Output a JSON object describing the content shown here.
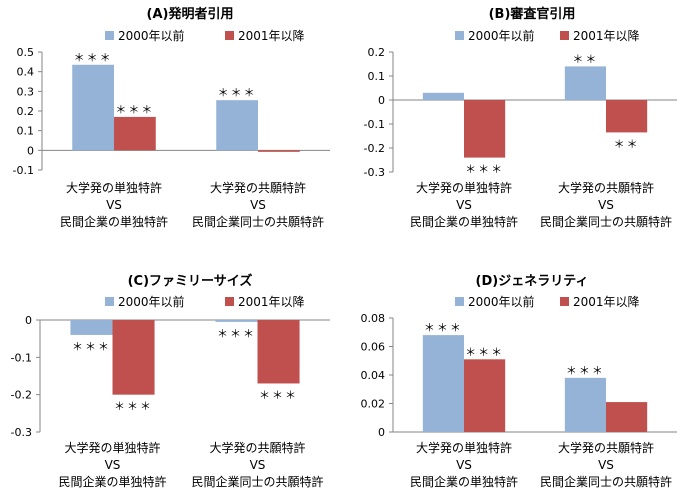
{
  "colors": {
    "s2000": "#95B3D7",
    "s2001": "#C0504D",
    "axis": "#868686",
    "tick": "#000000"
  },
  "legend": [
    "2000年以前",
    "2001年以降"
  ],
  "separator": "VS",
  "chart_data": [
    {
      "type": "bar",
      "title": "(A)発明者引用",
      "ylim": [
        -0.1,
        0.5
      ],
      "yticks": [
        "0.5",
        "0.4",
        "0.3",
        "0.2",
        "0.1",
        "0",
        "-0.1"
      ],
      "categories": [
        {
          "line1": "大学発の単独特許",
          "line3": "民間企業の単独特許"
        },
        {
          "line1": "大学発の共願特許",
          "line3": "民間企業同士の共願特許"
        }
      ],
      "series": [
        {
          "name": "2000年以前",
          "values": [
            0.435,
            0.255
          ],
          "sig": [
            "＊＊＊",
            "＊＊＊"
          ]
        },
        {
          "name": "2001年以降",
          "values": [
            0.17,
            -0.005
          ],
          "sig": [
            "＊＊＊",
            ""
          ]
        }
      ]
    },
    {
      "type": "bar",
      "title": "(B)審査官引用",
      "ylim": [
        -0.3,
        0.2
      ],
      "yticks": [
        "0.2",
        "0.1",
        "0",
        "-0.1",
        "-0.2",
        "-0.3"
      ],
      "categories": [
        {
          "line1": "大学発の単独特許",
          "line3": "民間企業の単独特許"
        },
        {
          "line1": "大学発の共願特許",
          "line3": "民間企業同士の共願特許"
        }
      ],
      "series": [
        {
          "name": "2000年以前",
          "values": [
            0.03,
            0.14
          ],
          "sig": [
            "",
            "＊＊"
          ]
        },
        {
          "name": "2001年以降",
          "values": [
            -0.24,
            -0.135
          ],
          "sig": [
            "＊＊＊",
            "＊＊"
          ]
        }
      ]
    },
    {
      "type": "bar",
      "title": "(C)ファミリーサイズ",
      "ylim": [
        -0.3,
        0
      ],
      "yticks": [
        "0",
        "-0.1",
        "-0.2",
        "-0.3"
      ],
      "categories": [
        {
          "line1": "大学発の単独特許",
          "line3": "民間企業の単独特許"
        },
        {
          "line1": "大学発の共願特許",
          "line3": "民間企業同士の共願特許"
        }
      ],
      "series": [
        {
          "name": "2000年以前",
          "values": [
            -0.04,
            -0.005
          ],
          "sig": [
            "＊＊＊",
            "＊＊＊"
          ]
        },
        {
          "name": "2001年以降",
          "values": [
            -0.2,
            -0.17
          ],
          "sig": [
            "＊＊＊",
            "＊＊＊"
          ]
        }
      ]
    },
    {
      "type": "bar",
      "title": "(D)ジェネラリティ",
      "ylim": [
        0,
        0.08
      ],
      "yticks": [
        "0.08",
        "0.06",
        "0.04",
        "0.02",
        "0"
      ],
      "categories": [
        {
          "line1": "大学発の単独特許",
          "line3": "民間企業の単独特許"
        },
        {
          "line1": "大学発の共願特許",
          "line3": "民間企業同士の共願特許"
        }
      ],
      "series": [
        {
          "name": "2000年以前",
          "values": [
            0.068,
            0.038
          ],
          "sig": [
            "＊＊＊",
            "＊＊＊"
          ]
        },
        {
          "name": "2001年以降",
          "values": [
            0.051,
            0.021
          ],
          "sig": [
            "＊＊＊",
            ""
          ]
        }
      ]
    }
  ]
}
